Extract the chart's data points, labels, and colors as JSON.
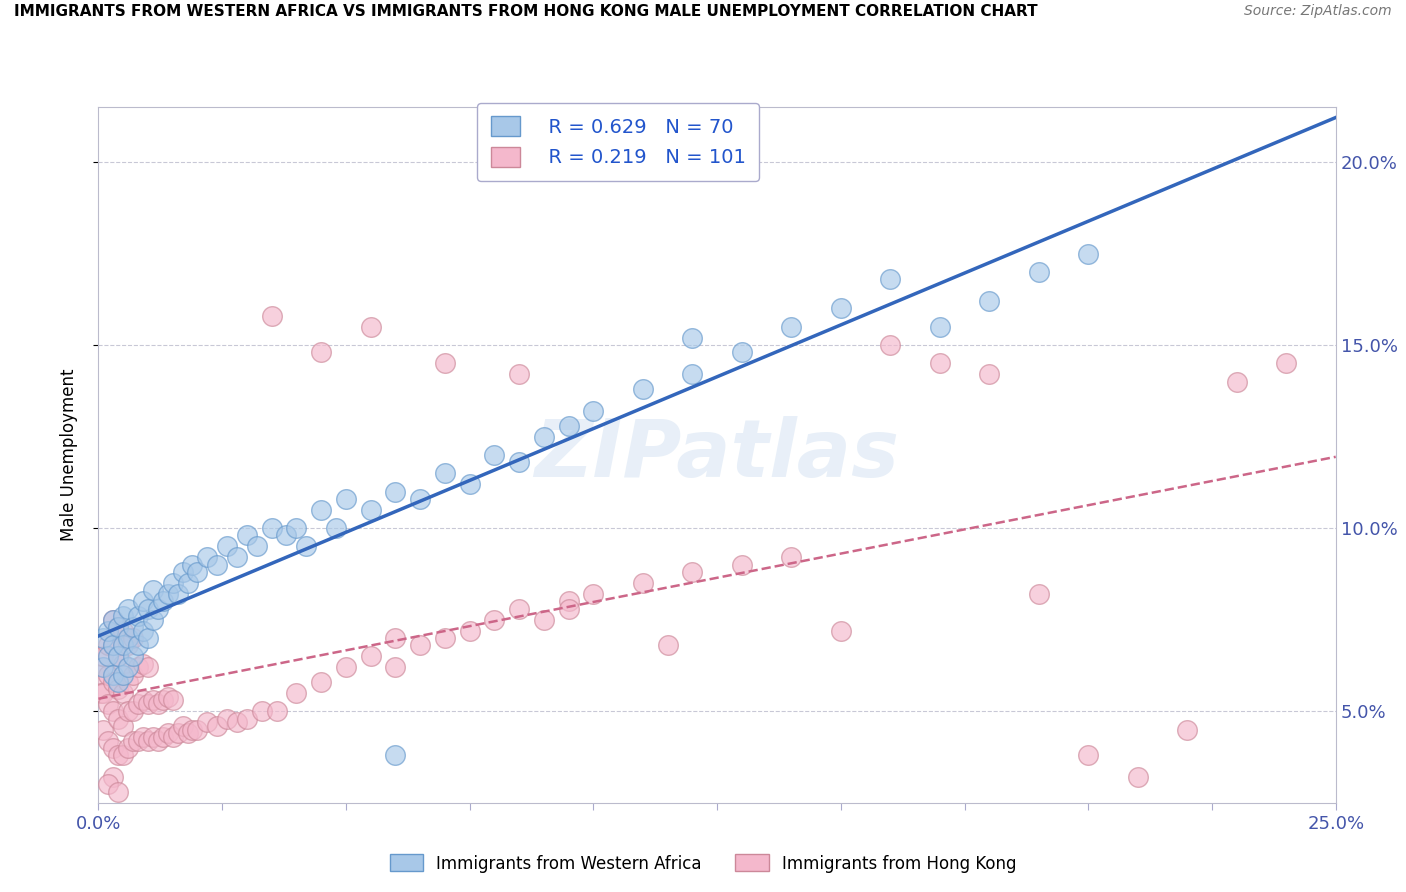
{
  "title": "IMMIGRANTS FROM WESTERN AFRICA VS IMMIGRANTS FROM HONG KONG MALE UNEMPLOYMENT CORRELATION CHART",
  "source": "Source: ZipAtlas.com",
  "ylabel": "Male Unemployment",
  "ytick_values": [
    0.05,
    0.1,
    0.15,
    0.2
  ],
  "xrange": [
    0.0,
    0.25
  ],
  "yrange": [
    0.025,
    0.215
  ],
  "legend_blue_r": "0.629",
  "legend_blue_n": "70",
  "legend_pink_r": "0.219",
  "legend_pink_n": "101",
  "blue_color": "#a8c8e8",
  "blue_edge_color": "#6699cc",
  "pink_color": "#f4b8cc",
  "pink_edge_color": "#cc8899",
  "blue_line_color": "#3366bb",
  "pink_line_color": "#cc6688",
  "watermark": "ZIPatlas",
  "blue_scatter_x": [
    0.001,
    0.001,
    0.002,
    0.002,
    0.003,
    0.003,
    0.003,
    0.004,
    0.004,
    0.004,
    0.005,
    0.005,
    0.005,
    0.006,
    0.006,
    0.006,
    0.007,
    0.007,
    0.008,
    0.008,
    0.009,
    0.009,
    0.01,
    0.01,
    0.011,
    0.011,
    0.012,
    0.013,
    0.014,
    0.015,
    0.016,
    0.017,
    0.018,
    0.019,
    0.02,
    0.022,
    0.024,
    0.026,
    0.028,
    0.03,
    0.032,
    0.035,
    0.038,
    0.04,
    0.042,
    0.045,
    0.048,
    0.05,
    0.055,
    0.06,
    0.065,
    0.07,
    0.075,
    0.08,
    0.085,
    0.09,
    0.095,
    0.1,
    0.11,
    0.12,
    0.13,
    0.14,
    0.15,
    0.16,
    0.17,
    0.18,
    0.19,
    0.2,
    0.12,
    0.06
  ],
  "blue_scatter_y": [
    0.062,
    0.07,
    0.065,
    0.072,
    0.06,
    0.068,
    0.075,
    0.058,
    0.065,
    0.073,
    0.06,
    0.068,
    0.076,
    0.062,
    0.07,
    0.078,
    0.065,
    0.073,
    0.068,
    0.076,
    0.072,
    0.08,
    0.07,
    0.078,
    0.075,
    0.083,
    0.078,
    0.08,
    0.082,
    0.085,
    0.082,
    0.088,
    0.085,
    0.09,
    0.088,
    0.092,
    0.09,
    0.095,
    0.092,
    0.098,
    0.095,
    0.1,
    0.098,
    0.1,
    0.095,
    0.105,
    0.1,
    0.108,
    0.105,
    0.11,
    0.108,
    0.115,
    0.112,
    0.12,
    0.118,
    0.125,
    0.128,
    0.132,
    0.138,
    0.142,
    0.148,
    0.155,
    0.16,
    0.168,
    0.155,
    0.162,
    0.17,
    0.175,
    0.152,
    0.038
  ],
  "pink_scatter_x": [
    0.0002,
    0.0005,
    0.001,
    0.001,
    0.001,
    0.002,
    0.002,
    0.002,
    0.002,
    0.003,
    0.003,
    0.003,
    0.003,
    0.003,
    0.004,
    0.004,
    0.004,
    0.004,
    0.004,
    0.005,
    0.005,
    0.005,
    0.005,
    0.005,
    0.006,
    0.006,
    0.006,
    0.006,
    0.007,
    0.007,
    0.007,
    0.007,
    0.008,
    0.008,
    0.008,
    0.009,
    0.009,
    0.009,
    0.01,
    0.01,
    0.01,
    0.011,
    0.011,
    0.012,
    0.012,
    0.013,
    0.013,
    0.014,
    0.014,
    0.015,
    0.015,
    0.016,
    0.017,
    0.018,
    0.019,
    0.02,
    0.022,
    0.024,
    0.026,
    0.028,
    0.03,
    0.033,
    0.036,
    0.04,
    0.045,
    0.05,
    0.055,
    0.06,
    0.065,
    0.07,
    0.075,
    0.08,
    0.085,
    0.09,
    0.095,
    0.1,
    0.11,
    0.12,
    0.13,
    0.14,
    0.15,
    0.16,
    0.17,
    0.18,
    0.19,
    0.2,
    0.21,
    0.22,
    0.23,
    0.24,
    0.035,
    0.045,
    0.055,
    0.06,
    0.07,
    0.085,
    0.095,
    0.115,
    0.003,
    0.002,
    0.004
  ],
  "pink_scatter_y": [
    0.06,
    0.055,
    0.045,
    0.055,
    0.065,
    0.042,
    0.052,
    0.06,
    0.068,
    0.04,
    0.05,
    0.058,
    0.068,
    0.075,
    0.038,
    0.048,
    0.056,
    0.065,
    0.073,
    0.038,
    0.046,
    0.055,
    0.063,
    0.072,
    0.04,
    0.05,
    0.058,
    0.068,
    0.042,
    0.05,
    0.06,
    0.07,
    0.042,
    0.052,
    0.062,
    0.043,
    0.053,
    0.063,
    0.042,
    0.052,
    0.062,
    0.043,
    0.053,
    0.042,
    0.052,
    0.043,
    0.053,
    0.044,
    0.054,
    0.043,
    0.053,
    0.044,
    0.046,
    0.044,
    0.045,
    0.045,
    0.047,
    0.046,
    0.048,
    0.047,
    0.048,
    0.05,
    0.05,
    0.055,
    0.058,
    0.062,
    0.065,
    0.062,
    0.068,
    0.07,
    0.072,
    0.075,
    0.078,
    0.075,
    0.08,
    0.082,
    0.085,
    0.088,
    0.09,
    0.092,
    0.072,
    0.15,
    0.145,
    0.142,
    0.082,
    0.038,
    0.032,
    0.045,
    0.14,
    0.145,
    0.158,
    0.148,
    0.155,
    0.07,
    0.145,
    0.142,
    0.078,
    0.068,
    0.032,
    0.03,
    0.028
  ]
}
